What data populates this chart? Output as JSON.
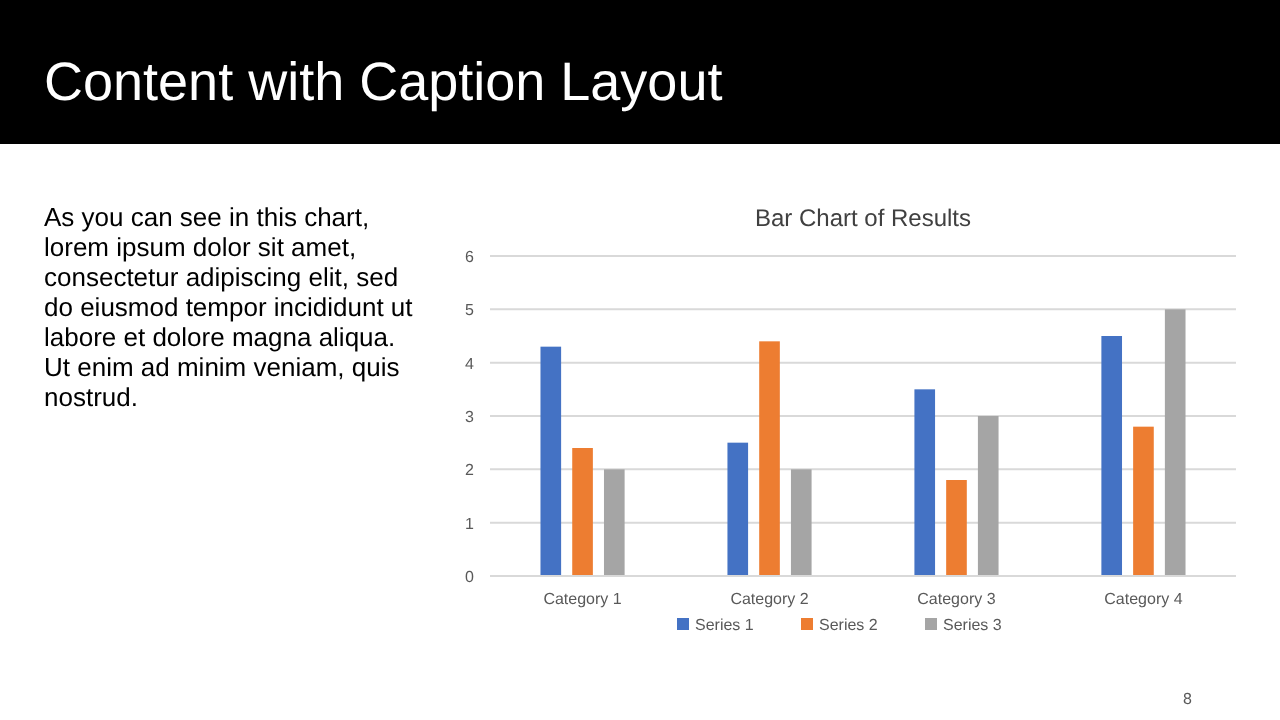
{
  "chart_data": {
    "type": "bar",
    "title": "Bar Chart of Results",
    "annotations": [
      "Content with Caption Layout",
      "As you can see in this chart, lorem ipsum dolor sit amet, consectetur adipiscing elit, sed do eiusmod tempor incididunt ut labore et dolore magna aliqua. Ut enim ad minim veniam, quis nostrud.",
      "8"
    ],
    "categories": [
      "Category 1",
      "Category 2",
      "Category 3",
      "Category 4"
    ],
    "series": [
      {
        "name": "Series 1",
        "color": "#4472c4",
        "values": [
          4.3,
          2.5,
          3.5,
          4.5
        ]
      },
      {
        "name": "Series 2",
        "color": "#ed7d31",
        "values": [
          2.4,
          4.4,
          1.8,
          2.8
        ]
      },
      {
        "name": "Series 3",
        "color": "#a5a5a5",
        "values": [
          2,
          2,
          3,
          5
        ]
      }
    ],
    "ylim": [
      0,
      6
    ],
    "yticks": [
      0,
      1,
      2,
      3,
      4,
      5,
      6
    ],
    "grid": "y",
    "legend": "bottom"
  }
}
